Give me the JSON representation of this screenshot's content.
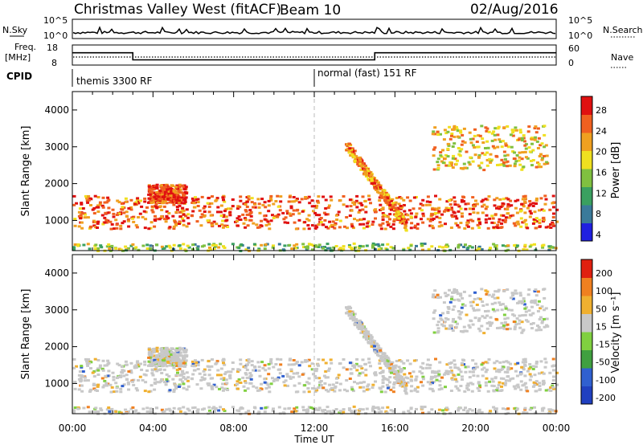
{
  "header": {
    "station": "Christmas Valley West (fitACF)",
    "beam": "Beam 10",
    "date": "02/Aug/2016"
  },
  "strip_panels": {
    "nsky_label": "N.Sky",
    "nsearch_label": "N.Search",
    "freq_label_line1": "Freq.",
    "freq_label_line2": "[MHz]",
    "nave_label": "Nave",
    "cpid_label": "CPID",
    "noise_ticks": [
      "10^5",
      "10^0"
    ],
    "freq_ticks": [
      "18",
      "8"
    ],
    "nave_ticks": [
      "60",
      "0"
    ],
    "cpid_segments": [
      {
        "label": "themis 3300 RF",
        "start_hour": 0,
        "end_hour": 12
      },
      {
        "label": "normal (fast) 151 RF",
        "start_hour": 12,
        "end_hour": 24
      }
    ]
  },
  "power_panel": {
    "ylabel": "Slant Range [km]",
    "colorbar_label": "Power [dB]",
    "colorbar_ticks": [
      "28",
      "24",
      "20",
      "16",
      "12",
      "8",
      "4"
    ],
    "colors": [
      "#2020e0",
      "#3a7a9a",
      "#3aa060",
      "#80c040",
      "#f0e020",
      "#f0a020",
      "#f06020",
      "#e01010"
    ]
  },
  "velocity_panel": {
    "ylabel": "Slant Range [km]",
    "colorbar_label": "Velocity [m s⁻¹]",
    "colorbar_ticks": [
      "200",
      "100",
      "50",
      "15",
      "-15",
      "-50",
      "-100",
      "-200"
    ],
    "colors": [
      "#2040c0",
      "#3060d0",
      "#40a040",
      "#80d040",
      "#c8c8c8",
      "#f0b030",
      "#f08020",
      "#e02010"
    ]
  },
  "x_axis": {
    "label": "Time UT",
    "ticks": [
      "00:00",
      "04:00",
      "08:00",
      "12:00",
      "16:00",
      "20:00",
      "00:00"
    ]
  },
  "y_axis": {
    "ticks": [
      "4000",
      "3000",
      "2000",
      "1000"
    ]
  },
  "chart_data": {
    "type": "heatmap",
    "title": "Christmas Valley West (fitACF) Beam 10 02/Aug/2016",
    "xlabel": "Time UT",
    "ylabel": "Slant Range [km]",
    "xlim_hours": [
      0,
      24
    ],
    "ylim_km": [
      180,
      4500
    ],
    "frequency_mhz_segments": [
      {
        "start_hour": 0,
        "end_hour": 3.0,
        "value": 14.5
      },
      {
        "start_hour": 3.0,
        "end_hour": 15.0,
        "value": 10.5
      },
      {
        "start_hour": 15.0,
        "end_hour": 24.0,
        "value": 14.5
      }
    ],
    "nave_approx": 30,
    "scatter_regions": [
      {
        "name": "main band",
        "start_hour": 0.0,
        "end_hour": 24.0,
        "range_km": [
          800,
          1700
        ],
        "power_db": 26,
        "velocity_ms": -10
      },
      {
        "name": "patch",
        "start_hour": 3.7,
        "end_hour": 5.6,
        "range_km": [
          1500,
          2000
        ],
        "power_db": 28,
        "velocity_ms": -40
      },
      {
        "name": "ground scatter near",
        "start_hour": 0.0,
        "end_hour": 24.0,
        "range_km": [
          200,
          400
        ],
        "power_db": 14,
        "velocity_ms": 0
      },
      {
        "name": "descending arc",
        "start_hour": 13.5,
        "end_hour": 16.5,
        "range_km": [
          900,
          3100
        ],
        "power_db": 24,
        "velocity_ms": -5
      },
      {
        "name": "upper patches",
        "start_hour": 17.8,
        "end_hour": 23.5,
        "range_km": [
          2400,
          3600
        ],
        "power_db": 20,
        "velocity_ms": 10
      }
    ]
  }
}
